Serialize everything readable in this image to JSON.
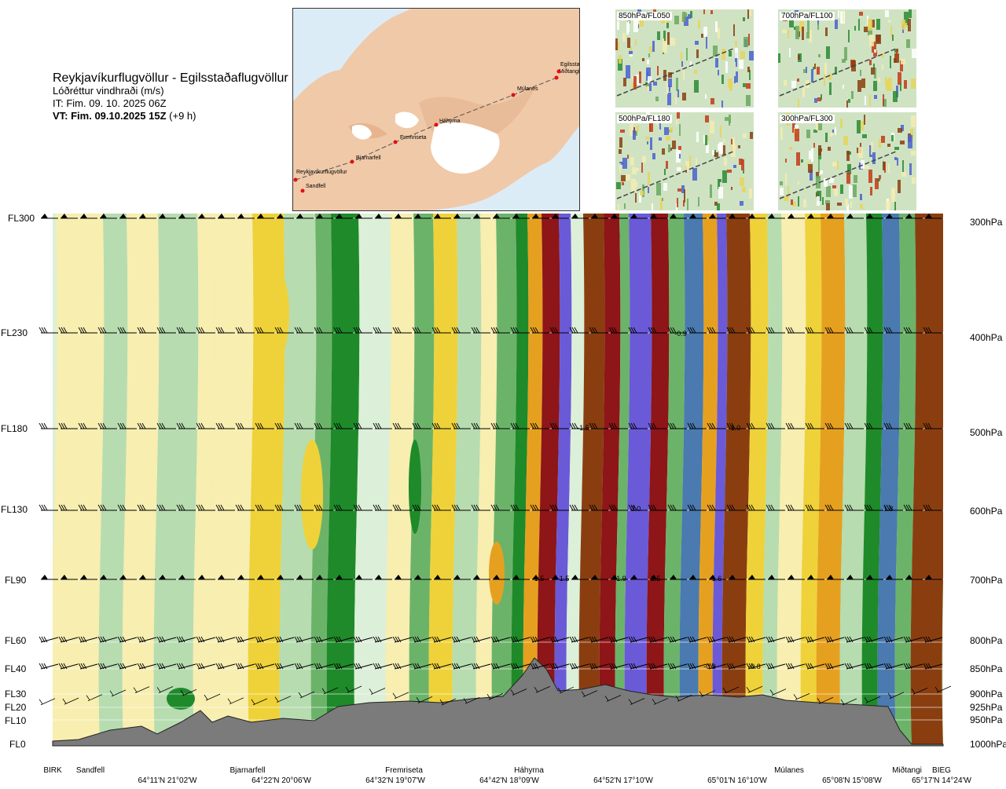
{
  "header": {
    "route": "Reykjavíkurflugvöllur - Egilsstaðaflugvöllur",
    "variable": "Lóðréttur vindhraði (m/s)",
    "issue_time": "IT: Fim. 09. 10. 2025 06Z",
    "valid_time_bold": "VT: Fim. 09.10.2025 15Z",
    "valid_offset": "(+9 h)"
  },
  "map": {
    "points": [
      {
        "name": "Reykjavíkurflugvöllur"
      },
      {
        "name": "Sandfell"
      },
      {
        "name": "Bjarnarfell"
      },
      {
        "name": "Fremriseta"
      },
      {
        "name": "Háhyrna"
      },
      {
        "name": "Múlanes"
      },
      {
        "name": "Miðtangi"
      },
      {
        "name": "Egilsstaðir"
      }
    ]
  },
  "thumbnails": [
    {
      "label": "850hPa/FL050"
    },
    {
      "label": "700hPa/FL100"
    },
    {
      "label": "500hPa/FL180"
    },
    {
      "label": "300hPa/FL300"
    }
  ],
  "chart_data": {
    "type": "heatmap",
    "title": "",
    "xlabel": "",
    "ylabel": "",
    "levels": [
      {
        "fl": "FL300",
        "hpa": "300hPa"
      },
      {
        "fl": "FL230",
        "hpa": "400hPa"
      },
      {
        "fl": "FL180",
        "hpa": "500hPa"
      },
      {
        "fl": "FL130",
        "hpa": "600hPa"
      },
      {
        "fl": "FL90",
        "hpa": "700hPa"
      },
      {
        "fl": "FL60",
        "hpa": "800hPa"
      },
      {
        "fl": "FL40",
        "hpa": "850hPa"
      },
      {
        "fl": "FL30",
        "hpa": "900hPa"
      },
      {
        "fl": "FL20",
        "hpa": "925hPa"
      },
      {
        "fl": "FL10",
        "hpa": "950hPa"
      },
      {
        "fl": "FL0",
        "hpa": "1000hPa"
      }
    ],
    "stations": [
      "BIRK",
      "Sandfell",
      "Bjarnarfell",
      "Fremriseta",
      "Háhyrna",
      "Múlanes",
      "Miðtangi",
      "BIEG"
    ],
    "coordinates": [
      "64°11'N 21°02'W",
      "64°22'N 20°06'W",
      "64°32'N 19°07'W",
      "64°42'N 18°09'W",
      "64°52'N 17°10'W",
      "65°01'N 16°10'W",
      "65°08'N 15°08'W",
      "65°17'N 14°24'W"
    ],
    "contour_labels": [
      "-0.9",
      "-1.5",
      "1.0",
      "3.0",
      "1.8",
      "1.5",
      "1.5",
      "-1.9",
      "1.5",
      "1.6",
      "-0.9",
      "-0.8"
    ],
    "colors": {
      "terrain": "#7b7b7b",
      "strong_up": "#6a5ad8",
      "up": "#4a7ab0",
      "dark_green": "#1f8a2a",
      "green": "#6cb36a",
      "light_green": "#b7dcb0",
      "pale_green": "#dcefd8",
      "pale_yellow": "#f7eeb0",
      "yellow": "#efd23a",
      "orange": "#e6a020",
      "brown": "#8a3e10",
      "down_strong": "#8e1518"
    }
  }
}
